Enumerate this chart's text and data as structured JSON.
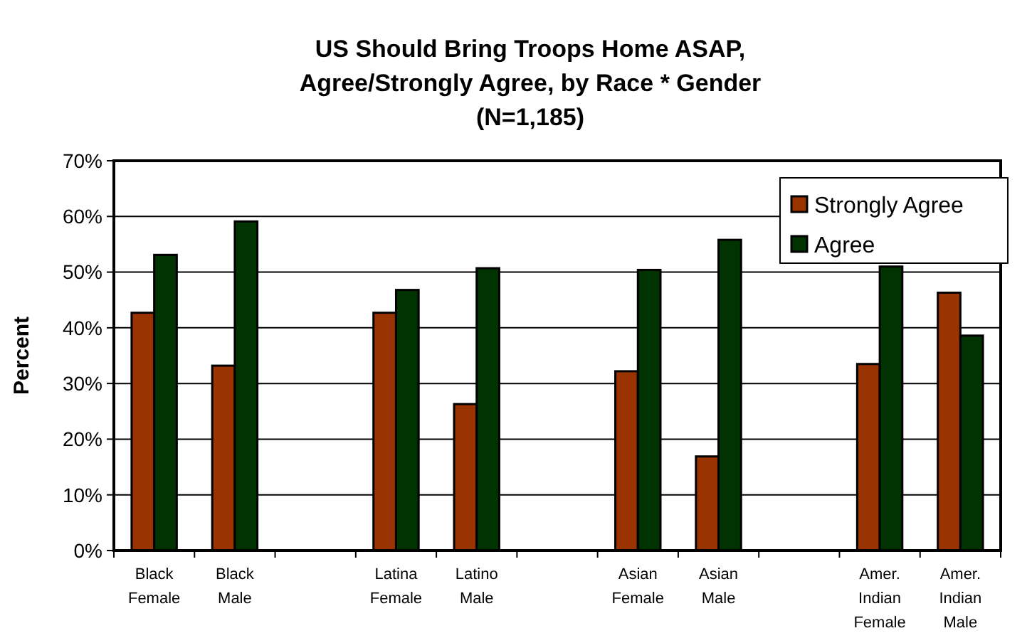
{
  "chart_data": {
    "type": "bar",
    "title": "US Should Bring Troops Home ASAP,\nAgree/Strongly Agree, by Race * Gender\n(N=1,185)",
    "ylabel": "Percent",
    "categories": [
      "Black\nFemale",
      "Black\nMale",
      null,
      "Latina\nFemale",
      "Latino\nMale",
      null,
      "Asian\nFemale",
      "Asian\nMale",
      null,
      "Amer.\nIndian\nFemale",
      "Amer.\nIndian\nMale"
    ],
    "series": [
      {
        "name": "Strongly Agree",
        "color": "#993300",
        "values": [
          42.7,
          33.2,
          null,
          42.7,
          26.3,
          null,
          32.2,
          16.9,
          null,
          33.5,
          46.3
        ]
      },
      {
        "name": "Agree",
        "color": "#003300",
        "values": [
          53.1,
          59.1,
          null,
          46.8,
          50.7,
          null,
          50.4,
          55.8,
          null,
          51,
          38.6
        ]
      }
    ],
    "ylim": [
      0,
      70
    ],
    "yticks": [
      {
        "value": 0,
        "label": "0%"
      },
      {
        "value": 10,
        "label": "10%"
      },
      {
        "value": 20,
        "label": "20%"
      },
      {
        "value": 30,
        "label": "30%"
      },
      {
        "value": 40,
        "label": "40%"
      },
      {
        "value": 50,
        "label": "50%"
      },
      {
        "value": 60,
        "label": "60%"
      },
      {
        "value": 70,
        "label": "70%"
      }
    ],
    "grid": "y",
    "legend": "top right"
  }
}
